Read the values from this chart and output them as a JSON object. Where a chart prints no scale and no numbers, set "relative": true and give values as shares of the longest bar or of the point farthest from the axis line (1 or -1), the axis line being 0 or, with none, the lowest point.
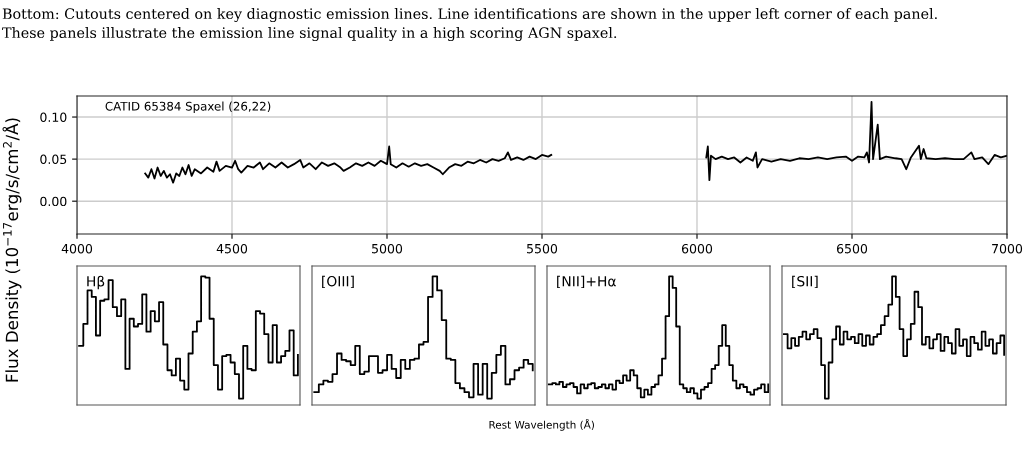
{
  "chart_data": [
    {
      "type": "line",
      "xlabel": null,
      "ylabel": "Flux Density (10$^{−17}$erg/s/cm$^{2}$/Å)",
      "annotations": [
        "CATID 65384 Spaxel (26,22)",
        "Bottom: Cutouts centered on key diagnostic emission lines. Line identifications are shown in the upper left corner of each panel.",
        "These panels illustrate the emission line signal quality in a high scoring AGN spaxel."
      ],
      "x": [
        4220,
        4230,
        4240,
        4250,
        4260,
        4270,
        4280,
        4290,
        4300,
        4310,
        4320,
        4330,
        4340,
        4350,
        4360,
        4370,
        4380,
        4400,
        4420,
        4440,
        4450,
        4460,
        4480,
        4500,
        4510,
        4520,
        4530,
        4550,
        4570,
        4590,
        4600,
        4620,
        4640,
        4660,
        4680,
        4700,
        4720,
        4730,
        4750,
        4770,
        4790,
        4810,
        4830,
        4850,
        4860,
        4880,
        4900,
        4920,
        4940,
        4960,
        4980,
        5000,
        5007,
        5012,
        5030,
        5050,
        5070,
        5090,
        5110,
        5130,
        5150,
        5170,
        5180,
        5200,
        5220,
        5240,
        5260,
        5280,
        5300,
        5320,
        5340,
        5360,
        5380,
        5390,
        5400,
        5420,
        5440,
        5460,
        5480,
        5500,
        5520,
        5530,
        5780,
        6030,
        6035,
        6040,
        6045,
        6060,
        6080,
        6100,
        6120,
        6140,
        6160,
        6180,
        6190,
        6195,
        6210,
        6240,
        6270,
        6300,
        6330,
        6360,
        6390,
        6420,
        6450,
        6480,
        6500,
        6520,
        6540,
        6548,
        6555,
        6563,
        6568,
        6583,
        6590,
        6610,
        6640,
        6660,
        6675,
        6690,
        6716,
        6722,
        6731,
        6740,
        6770,
        6800,
        6830,
        6860,
        6885,
        6895,
        6920,
        6940,
        6960,
        6980,
        7000
      ],
      "series": [
        {
          "color": "#000000",
          "values": [
            0.033,
            0.028,
            0.038,
            0.027,
            0.04,
            0.03,
            0.036,
            0.028,
            0.032,
            0.022,
            0.033,
            0.03,
            0.04,
            0.032,
            0.043,
            0.03,
            0.038,
            0.033,
            0.04,
            0.035,
            0.047,
            0.036,
            0.042,
            0.04,
            0.048,
            0.038,
            0.034,
            0.042,
            0.04,
            0.046,
            0.038,
            0.045,
            0.04,
            0.046,
            0.04,
            0.044,
            0.049,
            0.04,
            0.045,
            0.038,
            0.046,
            0.042,
            0.045,
            0.04,
            0.036,
            0.04,
            0.045,
            0.042,
            0.046,
            0.042,
            0.048,
            0.044,
            0.065,
            0.044,
            0.04,
            0.045,
            0.041,
            0.045,
            0.042,
            0.044,
            0.04,
            0.036,
            0.032,
            0.04,
            0.044,
            0.042,
            0.047,
            0.045,
            0.049,
            0.046,
            0.05,
            0.048,
            0.051,
            0.058,
            0.049,
            0.052,
            0.049,
            0.053,
            0.05,
            0.055,
            0.053,
            0.055,
            null,
            0.052,
            0.065,
            0.025,
            0.054,
            0.05,
            0.053,
            0.05,
            0.052,
            0.046,
            0.052,
            0.048,
            0.058,
            0.04,
            0.05,
            0.047,
            0.05,
            0.048,
            0.051,
            0.05,
            0.052,
            0.05,
            0.052,
            0.053,
            0.048,
            0.053,
            0.052,
            0.058,
            0.046,
            0.118,
            0.05,
            0.091,
            0.05,
            0.053,
            0.051,
            0.05,
            0.038,
            0.052,
            0.066,
            0.05,
            0.062,
            0.051,
            0.05,
            0.051,
            0.05,
            0.05,
            0.058,
            0.05,
            0.052,
            0.044,
            0.055,
            0.052,
            0.054
          ]
        }
      ],
      "xlim": [
        4000,
        7000
      ],
      "xticks": [
        4000,
        4500,
        5000,
        5500,
        6000,
        6500,
        7000
      ],
      "ylim": [
        -0.039,
        0.125
      ],
      "yticks": [
        {
          "value": 0,
          "label": "0.00"
        },
        {
          "value": 0.05,
          "label": "0.05"
        },
        {
          "value": 0.1,
          "label": "0.10"
        }
      ],
      "grid": true
    },
    {
      "type": "step",
      "relative": true,
      "annotations": [
        "Hβ"
      ],
      "categories": [
        null,
        null,
        null,
        null,
        null,
        null,
        null,
        null,
        null,
        null,
        null,
        null,
        null,
        null,
        null,
        null,
        null,
        null,
        null,
        null,
        null,
        null,
        null,
        null,
        null,
        null,
        null,
        null,
        null,
        null,
        null,
        null,
        null,
        null,
        null,
        null,
        null,
        null,
        null,
        null,
        null,
        null,
        null,
        null,
        null,
        null,
        null,
        null,
        null,
        null,
        null,
        null,
        null
      ],
      "series": [
        {
          "color": "#000000",
          "values": [
            0.46,
            0.63,
            0.89,
            0.84,
            0.54,
            0.81,
            0.82,
            0.97,
            0.76,
            0.69,
            0.82,
            0.28,
            0.67,
            0.61,
            0.63,
            0.86,
            0.57,
            0.73,
            0.65,
            0.8,
            0.47,
            0.27,
            0.23,
            0.36,
            0.19,
            0.12,
            0.4,
            0.57,
            0.65,
            1.0,
            0.99,
            0.67,
            0.31,
            0.12,
            0.38,
            0.39,
            0.33,
            0.24,
            0.05,
            0.46,
            0.28,
            0.27,
            0.73,
            0.71,
            0.55,
            0.33,
            0.62,
            0.33,
            0.38,
            0.42,
            0.58,
            0.23,
            0.39
          ]
        }
      ]
    },
    {
      "type": "step",
      "relative": true,
      "annotations": [
        "[OIII]"
      ],
      "xlabel": "Rest Wavelength (Å)",
      "categories": [
        null,
        null,
        null,
        null,
        null,
        null,
        null,
        null,
        null,
        null,
        null,
        null,
        null,
        null,
        null,
        null,
        null,
        null,
        null,
        null,
        null,
        null,
        null,
        null,
        null,
        null,
        null,
        null,
        null,
        null,
        null,
        null,
        null,
        null,
        null,
        null,
        null,
        null,
        null,
        null,
        null,
        null,
        null,
        null,
        null,
        null,
        null,
        null,
        null
      ],
      "series": [
        {
          "color": "#000000",
          "values": [
            0.1,
            0.16,
            0.19,
            0.18,
            0.24,
            0.4,
            0.35,
            0.34,
            0.31,
            0.46,
            0.24,
            0.26,
            0.38,
            0.38,
            0.25,
            0.27,
            0.39,
            0.28,
            0.21,
            0.35,
            0.28,
            0.35,
            0.36,
            0.47,
            0.49,
            0.84,
            1.0,
            0.89,
            0.66,
            0.36,
            0.35,
            0.17,
            0.13,
            0.1,
            0.06,
            0.32,
            0.08,
            0.32,
            0.05,
            0.25,
            0.39,
            0.46,
            0.16,
            0.2,
            0.27,
            0.29,
            0.35,
            0.32,
            0.27
          ]
        }
      ]
    },
    {
      "type": "step",
      "relative": true,
      "annotations": [
        "[NII]+Hα"
      ],
      "categories": [
        null,
        null,
        null,
        null,
        null,
        null,
        null,
        null,
        null,
        null,
        null,
        null,
        null,
        null,
        null,
        null,
        null,
        null,
        null,
        null,
        null,
        null,
        null,
        null,
        null,
        null,
        null,
        null,
        null,
        null,
        null,
        null,
        null,
        null,
        null,
        null,
        null,
        null,
        null,
        null,
        null,
        null,
        null,
        null,
        null,
        null,
        null,
        null,
        null,
        null,
        null,
        null,
        null,
        null,
        null,
        null,
        null,
        null,
        null,
        null,
        null,
        null,
        null
      ],
      "series": [
        {
          "color": "#000000",
          "values": [
            0.16,
            0.17,
            0.16,
            0.18,
            0.14,
            0.16,
            0.17,
            0.14,
            0.09,
            0.16,
            0.13,
            0.16,
            0.17,
            0.13,
            0.14,
            0.16,
            0.13,
            0.16,
            0.12,
            0.19,
            0.17,
            0.23,
            0.19,
            0.27,
            0.23,
            0.13,
            0.06,
            0.12,
            0.08,
            0.14,
            0.16,
            0.23,
            0.36,
            0.69,
            1.0,
            0.91,
            0.61,
            0.16,
            0.13,
            0.1,
            0.13,
            0.09,
            0.05,
            0.12,
            0.14,
            0.17,
            0.28,
            0.31,
            0.46,
            0.62,
            0.46,
            0.31,
            0.19,
            0.13,
            0.16,
            0.14,
            0.1,
            0.08,
            0.12,
            0.13,
            0.16,
            0.1,
            0.16
          ]
        }
      ]
    },
    {
      "type": "step",
      "relative": true,
      "annotations": [
        "[SII]"
      ],
      "categories": [
        null,
        null,
        null,
        null,
        null,
        null,
        null,
        null,
        null,
        null,
        null,
        null,
        null,
        null,
        null,
        null,
        null,
        null,
        null,
        null,
        null,
        null,
        null,
        null,
        null,
        null,
        null,
        null,
        null,
        null,
        null,
        null,
        null,
        null,
        null,
        null,
        null,
        null,
        null,
        null,
        null,
        null,
        null,
        null,
        null,
        null,
        null,
        null,
        null,
        null,
        null,
        null,
        null,
        null,
        null,
        null,
        null,
        null,
        null,
        null
      ],
      "series": [
        {
          "color": "#000000",
          "values": [
            0.55,
            0.44,
            0.52,
            0.46,
            0.53,
            0.57,
            0.51,
            0.55,
            0.59,
            0.52,
            0.31,
            0.05,
            0.33,
            0.51,
            0.61,
            0.47,
            0.57,
            0.51,
            0.53,
            0.48,
            0.55,
            0.46,
            0.54,
            0.47,
            0.53,
            0.55,
            0.62,
            0.69,
            0.78,
            1.0,
            0.84,
            0.59,
            0.38,
            0.51,
            0.63,
            0.88,
            0.76,
            0.47,
            0.53,
            0.44,
            0.51,
            0.55,
            0.42,
            0.53,
            0.48,
            0.4,
            0.59,
            0.46,
            0.51,
            0.38,
            0.53,
            0.48,
            0.43,
            0.57,
            0.46,
            0.51,
            0.4,
            0.48,
            0.54,
            0.39
          ]
        }
      ]
    }
  ]
}
